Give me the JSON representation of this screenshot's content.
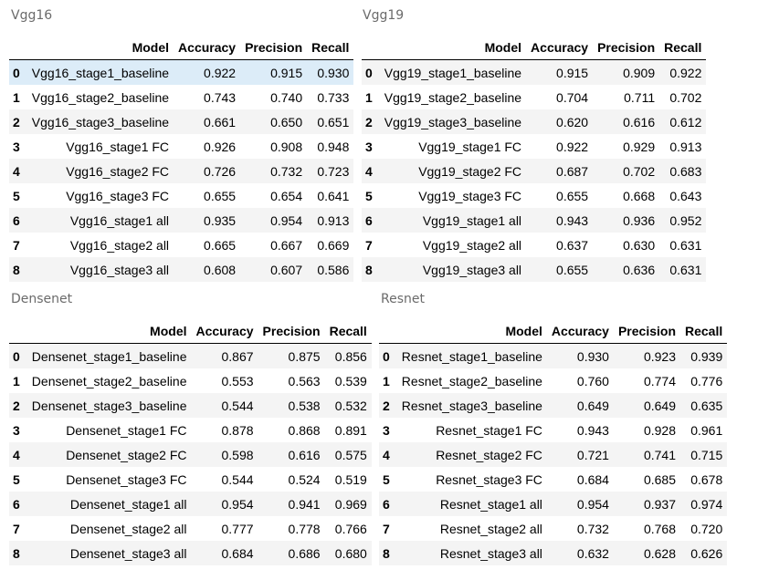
{
  "columns": [
    "Model",
    "Accuracy",
    "Precision",
    "Recall"
  ],
  "tables": [
    {
      "caption": "Vgg16",
      "rows": [
        {
          "idx": "0",
          "model": "Vgg16_stage1_baseline",
          "accuracy": "0.922",
          "precision": "0.915",
          "recall": "0.930"
        },
        {
          "idx": "1",
          "model": "Vgg16_stage2_baseline",
          "accuracy": "0.743",
          "precision": "0.740",
          "recall": "0.733"
        },
        {
          "idx": "2",
          "model": "Vgg16_stage3_baseline",
          "accuracy": "0.661",
          "precision": "0.650",
          "recall": "0.651"
        },
        {
          "idx": "3",
          "model": "Vgg16_stage1 FC",
          "accuracy": "0.926",
          "precision": "0.908",
          "recall": "0.948"
        },
        {
          "idx": "4",
          "model": "Vgg16_stage2 FC",
          "accuracy": "0.726",
          "precision": "0.732",
          "recall": "0.723"
        },
        {
          "idx": "5",
          "model": "Vgg16_stage3 FC",
          "accuracy": "0.655",
          "precision": "0.654",
          "recall": "0.641"
        },
        {
          "idx": "6",
          "model": "Vgg16_stage1 all",
          "accuracy": "0.935",
          "precision": "0.954",
          "recall": "0.913"
        },
        {
          "idx": "7",
          "model": "Vgg16_stage2 all",
          "accuracy": "0.665",
          "precision": "0.667",
          "recall": "0.669"
        },
        {
          "idx": "8",
          "model": "Vgg16_stage3 all",
          "accuracy": "0.608",
          "precision": "0.607",
          "recall": "0.586"
        }
      ]
    },
    {
      "caption": "Vgg19",
      "rows": [
        {
          "idx": "0",
          "model": "Vgg19_stage1_baseline",
          "accuracy": "0.915",
          "precision": "0.909",
          "recall": "0.922"
        },
        {
          "idx": "1",
          "model": "Vgg19_stage2_baseline",
          "accuracy": "0.704",
          "precision": "0.711",
          "recall": "0.702"
        },
        {
          "idx": "2",
          "model": "Vgg19_stage3_baseline",
          "accuracy": "0.620",
          "precision": "0.616",
          "recall": "0.612"
        },
        {
          "idx": "3",
          "model": "Vgg19_stage1 FC",
          "accuracy": "0.922",
          "precision": "0.929",
          "recall": "0.913"
        },
        {
          "idx": "4",
          "model": "Vgg19_stage2 FC",
          "accuracy": "0.687",
          "precision": "0.702",
          "recall": "0.683"
        },
        {
          "idx": "5",
          "model": "Vgg19_stage3 FC",
          "accuracy": "0.655",
          "precision": "0.668",
          "recall": "0.643"
        },
        {
          "idx": "6",
          "model": "Vgg19_stage1 all",
          "accuracy": "0.943",
          "precision": "0.936",
          "recall": "0.952"
        },
        {
          "idx": "7",
          "model": "Vgg19_stage2 all",
          "accuracy": "0.637",
          "precision": "0.630",
          "recall": "0.631"
        },
        {
          "idx": "8",
          "model": "Vgg19_stage3 all",
          "accuracy": "0.655",
          "precision": "0.636",
          "recall": "0.631"
        }
      ]
    },
    {
      "caption": "Densenet",
      "rows": [
        {
          "idx": "0",
          "model": "Densenet_stage1_baseline",
          "accuracy": "0.867",
          "precision": "0.875",
          "recall": "0.856"
        },
        {
          "idx": "1",
          "model": "Densenet_stage2_baseline",
          "accuracy": "0.553",
          "precision": "0.563",
          "recall": "0.539"
        },
        {
          "idx": "2",
          "model": "Densenet_stage3_baseline",
          "accuracy": "0.544",
          "precision": "0.538",
          "recall": "0.532"
        },
        {
          "idx": "3",
          "model": "Densenet_stage1 FC",
          "accuracy": "0.878",
          "precision": "0.868",
          "recall": "0.891"
        },
        {
          "idx": "4",
          "model": "Densenet_stage2 FC",
          "accuracy": "0.598",
          "precision": "0.616",
          "recall": "0.575"
        },
        {
          "idx": "5",
          "model": "Densenet_stage3 FC",
          "accuracy": "0.544",
          "precision": "0.524",
          "recall": "0.519"
        },
        {
          "idx": "6",
          "model": "Densenet_stage1 all",
          "accuracy": "0.954",
          "precision": "0.941",
          "recall": "0.969"
        },
        {
          "idx": "7",
          "model": "Densenet_stage2 all",
          "accuracy": "0.777",
          "precision": "0.778",
          "recall": "0.766"
        },
        {
          "idx": "8",
          "model": "Densenet_stage3 all",
          "accuracy": "0.684",
          "precision": "0.686",
          "recall": "0.680"
        }
      ]
    },
    {
      "caption": "Resnet",
      "rows": [
        {
          "idx": "0",
          "model": "Resnet_stage1_baseline",
          "accuracy": "0.930",
          "precision": "0.923",
          "recall": "0.939"
        },
        {
          "idx": "1",
          "model": "Resnet_stage2_baseline",
          "accuracy": "0.760",
          "precision": "0.774",
          "recall": "0.776"
        },
        {
          "idx": "2",
          "model": "Resnet_stage3_baseline",
          "accuracy": "0.649",
          "precision": "0.649",
          "recall": "0.635"
        },
        {
          "idx": "3",
          "model": "Resnet_stage1 FC",
          "accuracy": "0.943",
          "precision": "0.928",
          "recall": "0.961"
        },
        {
          "idx": "4",
          "model": "Resnet_stage2 FC",
          "accuracy": "0.721",
          "precision": "0.741",
          "recall": "0.715"
        },
        {
          "idx": "5",
          "model": "Resnet_stage3 FC",
          "accuracy": "0.684",
          "precision": "0.685",
          "recall": "0.678"
        },
        {
          "idx": "6",
          "model": "Resnet_stage1 all",
          "accuracy": "0.954",
          "precision": "0.937",
          "recall": "0.974"
        },
        {
          "idx": "7",
          "model": "Resnet_stage2 all",
          "accuracy": "0.732",
          "precision": "0.768",
          "recall": "0.720"
        },
        {
          "idx": "8",
          "model": "Resnet_stage3 all",
          "accuracy": "0.632",
          "precision": "0.628",
          "recall": "0.626"
        }
      ]
    }
  ]
}
